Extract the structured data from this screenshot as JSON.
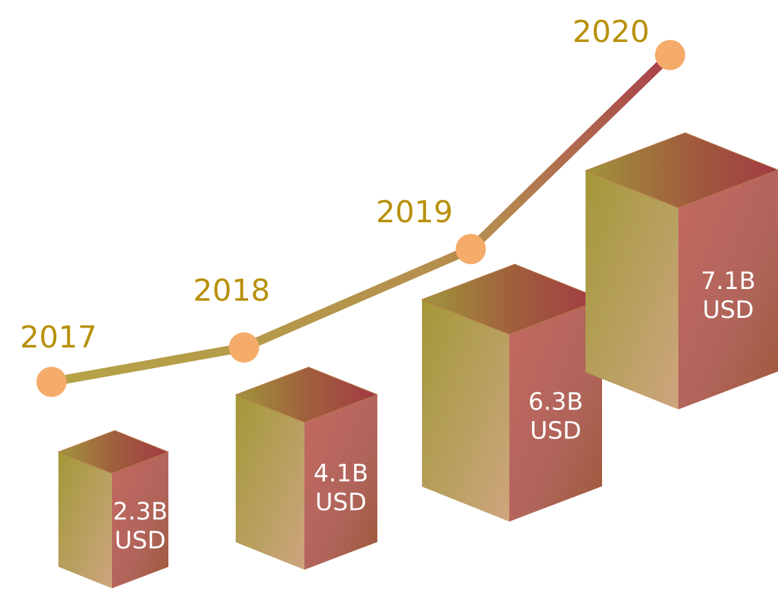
{
  "chart_data": {
    "type": "bar3d",
    "categories": [
      "2017",
      "2018",
      "2019",
      "2020"
    ],
    "values": [
      2.3,
      4.1,
      6.3,
      7.1
    ],
    "value_labels": [
      "2.3B USD",
      "4.1B USD",
      "6.3B USD",
      "7.1B USD"
    ]
  }
}
